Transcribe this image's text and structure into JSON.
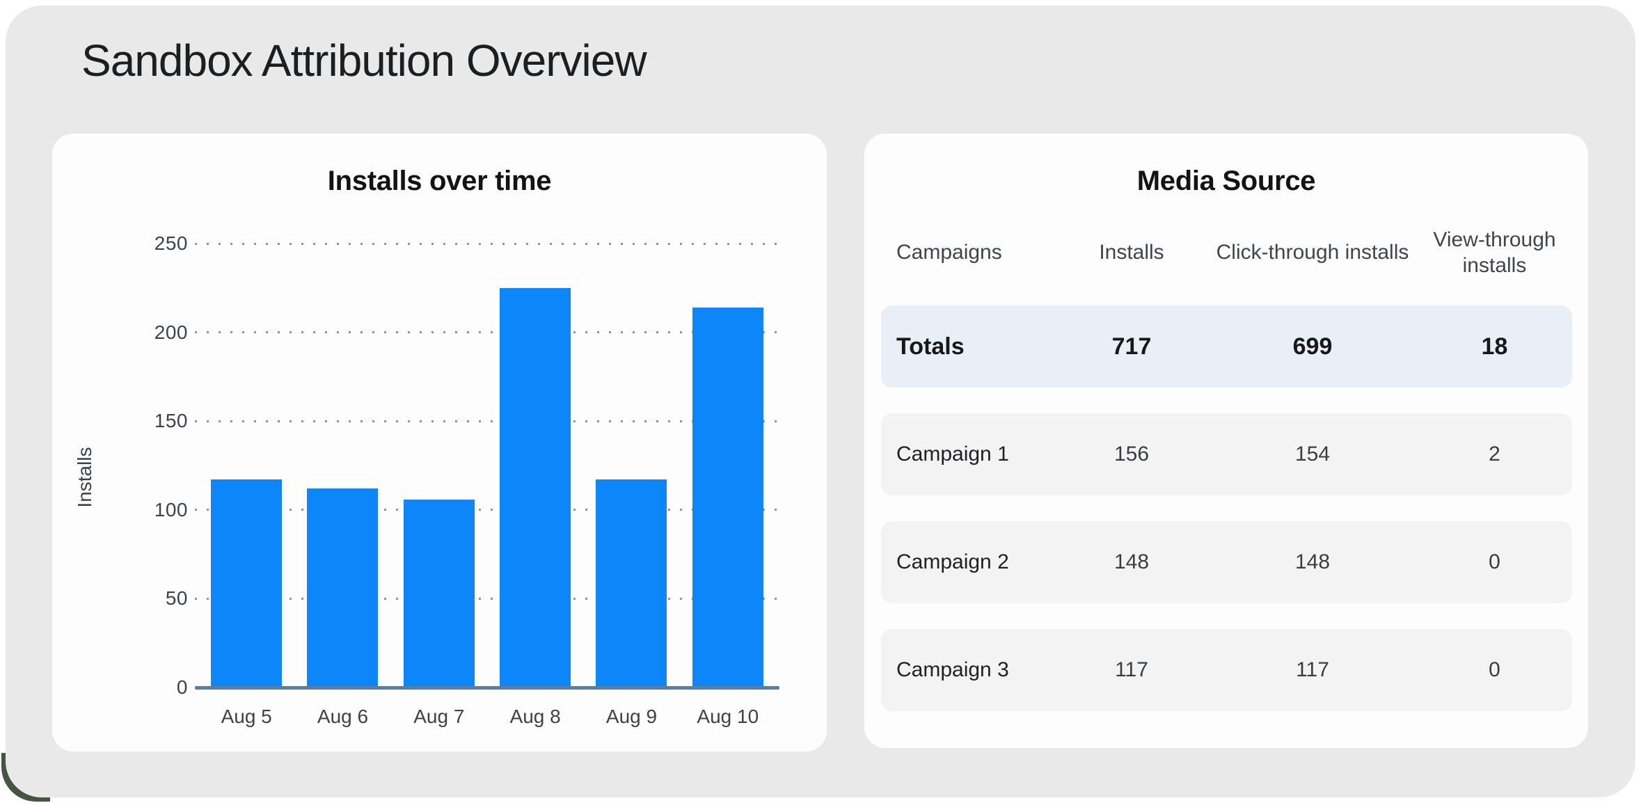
{
  "page": {
    "title": "Sandbox Attribution Overview"
  },
  "chart_data": [
    {
      "type": "bar",
      "title": "Installs over time",
      "categories": [
        "Aug 5",
        "Aug 6",
        "Aug 7",
        "Aug 8",
        "Aug 9",
        "Aug 10"
      ],
      "values": [
        117,
        112,
        106,
        225,
        117,
        214
      ],
      "xlabel": "",
      "ylabel": "Installs",
      "ylim": [
        0,
        250
      ],
      "yticks": [
        "250",
        "200",
        "150",
        "100",
        "50",
        "0"
      ],
      "grid": "horizontal-dotted",
      "legend": "none",
      "bar_color": "#0c86f8"
    },
    {
      "type": "table",
      "title": "Media Source",
      "columns": [
        "Campaigns",
        "Installs",
        "Click-through installs",
        "View-through installs"
      ],
      "rows": [
        [
          "Totals",
          "717",
          "699",
          "18"
        ],
        [
          "Campaign 1",
          "156",
          "154",
          "2"
        ],
        [
          "Campaign 2",
          "148",
          "148",
          "0"
        ],
        [
          "Campaign 3",
          "117",
          "117",
          "0"
        ]
      ]
    }
  ],
  "colors": {
    "page_bg": "#ffffff",
    "panel_bg": "#e9e9e9",
    "card_bg": "#fdfdfd",
    "bar_blue": "#0c86f8",
    "axis_line": "#5b7da1",
    "totals_row_bg": "#e8eff6",
    "campaign_row_bg": "#f3f3f4",
    "title_text": "#1d1e1f"
  }
}
